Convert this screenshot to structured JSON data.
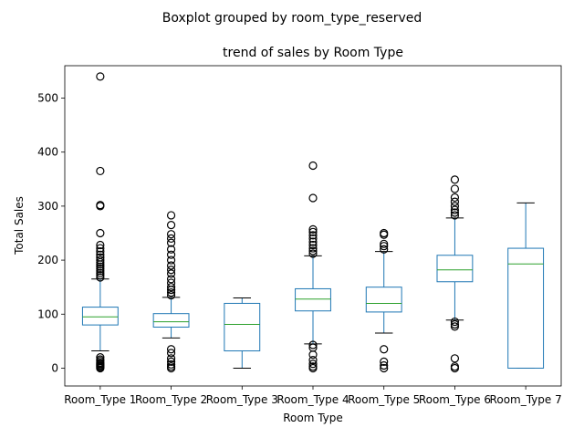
{
  "chart_data": {
    "type": "box",
    "suptitle": "Boxplot grouped by room_type_reserved",
    "title": "trend of sales by Room Type",
    "xlabel": "Room Type",
    "ylabel": "Total Sales",
    "ylim": [
      -33,
      560
    ],
    "yticks": [
      0,
      100,
      200,
      300,
      400,
      500
    ],
    "grid": false,
    "colors": {
      "box": "#1f77b4",
      "median": "#2ca02c",
      "flier": "#000000"
    },
    "categories": [
      "Room_Type 1",
      "Room_Type 2",
      "Room_Type 3",
      "Room_Type 4",
      "Room_Type 5",
      "Room_Type 6",
      "Room_Type 7"
    ],
    "boxes": [
      {
        "category": "Room_Type 1",
        "whislo": 32,
        "q1": 80,
        "med": 95,
        "q3": 113,
        "whishi": 165,
        "fliers": [
          0,
          2,
          4,
          6,
          8,
          10,
          13,
          16,
          20,
          168,
          172,
          176,
          180,
          184,
          188,
          192,
          196,
          200,
          205,
          210,
          216,
          222,
          228,
          250,
          300,
          302,
          365,
          540
        ]
      },
      {
        "category": "Room_Type 2",
        "whislo": 56,
        "q1": 76,
        "med": 86,
        "q3": 101,
        "whishi": 131,
        "fliers": [
          0,
          3,
          7,
          12,
          18,
          28,
          35,
          135,
          140,
          145,
          150,
          158,
          165,
          175,
          182,
          190,
          200,
          210,
          220,
          232,
          240,
          248,
          265,
          283
        ]
      },
      {
        "category": "Room_Type 3",
        "whislo": 0,
        "q1": 32,
        "med": 81,
        "q3": 120,
        "whishi": 130,
        "fliers": []
      },
      {
        "category": "Room_Type 4",
        "whislo": 45,
        "q1": 106,
        "med": 128,
        "q3": 147,
        "whishi": 208,
        "fliers": [
          0,
          3,
          8,
          15,
          25,
          38,
          43,
          212,
          217,
          222,
          228,
          234,
          240,
          246,
          252,
          257,
          315,
          375
        ]
      },
      {
        "category": "Room_Type 5",
        "whislo": 65,
        "q1": 104,
        "med": 120,
        "q3": 150,
        "whishi": 216,
        "fliers": [
          0,
          5,
          12,
          35,
          220,
          226,
          230,
          247,
          250
        ]
      },
      {
        "category": "Room_Type 6",
        "whislo": 89,
        "q1": 160,
        "med": 182,
        "q3": 209,
        "whishi": 278,
        "fliers": [
          0,
          3,
          18,
          77,
          81,
          86,
          283,
          288,
          293,
          300,
          308,
          316,
          332,
          349
        ]
      },
      {
        "category": "Room_Type 7",
        "whislo": 0,
        "q1": 0,
        "med": 193,
        "q3": 222,
        "whishi": 306,
        "fliers": []
      }
    ]
  }
}
